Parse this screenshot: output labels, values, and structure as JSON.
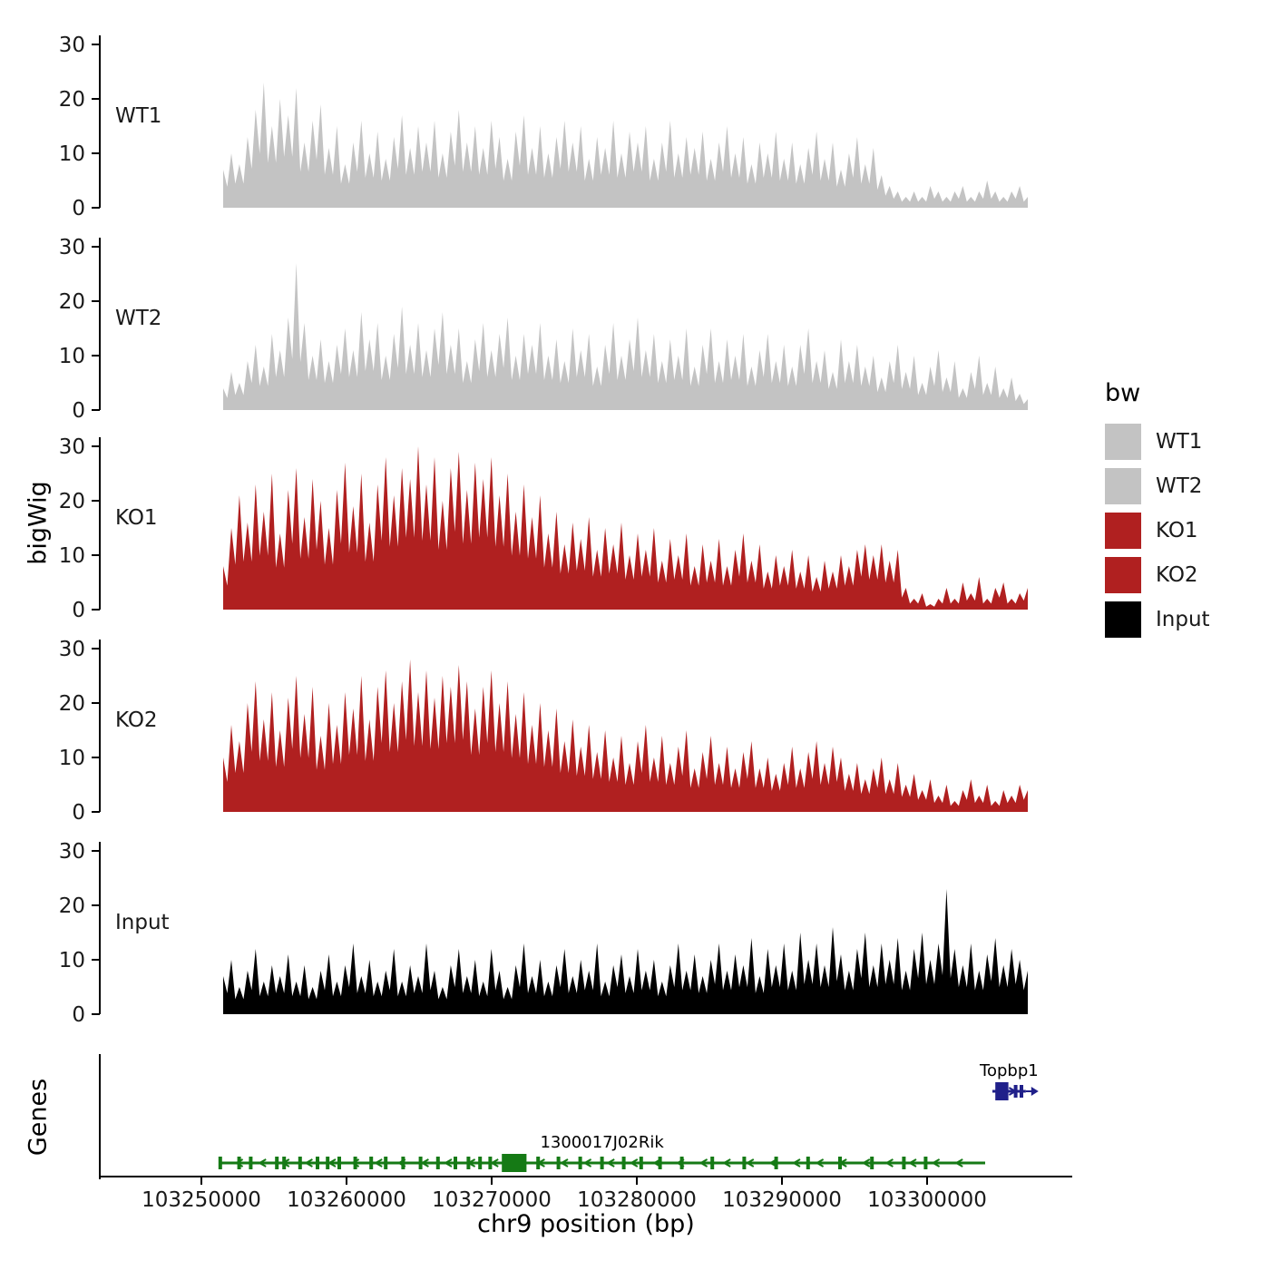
{
  "axis": {
    "y_title": "bigWig",
    "genes_title": "Genes",
    "x_title": "chr9 position (bp)",
    "y_ticks": [
      30,
      20,
      10,
      0
    ]
  },
  "legend": {
    "title": "bw",
    "items": [
      {
        "label": "WT1",
        "color": "#c3c3c3"
      },
      {
        "label": "WT2",
        "color": "#c3c3c3"
      },
      {
        "label": "KO1",
        "color": "#b02020"
      },
      {
        "label": "KO2",
        "color": "#b02020"
      },
      {
        "label": "Input",
        "color": "#000000"
      }
    ]
  },
  "chart_data": {
    "type": "area",
    "title": "",
    "xlabel": "chr9 position (bp)",
    "ylabel": "bigWig",
    "x_axis": {
      "chrom": "chr9",
      "range_bp": [
        103243000,
        103310000
      ],
      "ticks_bp": [
        103250000,
        103260000,
        103270000,
        103280000,
        103290000,
        103300000
      ],
      "tick_labels": [
        "103250000",
        "103260000",
        "103270000",
        "103280000",
        "103290000",
        "103300000"
      ]
    },
    "y_axis": {
      "ticks": [
        0,
        10,
        20,
        30
      ],
      "ylim": [
        0,
        32
      ],
      "grid": false
    },
    "legend_position": "right",
    "signal_start_bp": 103251500,
    "signal_step_bp": 560,
    "tracks": [
      {
        "name": "WT1",
        "color": "#c3c3c3",
        "values": [
          7,
          10,
          8,
          13,
          18,
          23,
          15,
          20,
          17,
          22,
          12,
          16,
          19,
          11,
          15,
          8,
          12,
          16,
          10,
          14,
          9,
          13,
          17,
          11,
          15,
          12,
          16,
          10,
          14,
          18,
          12,
          15,
          11,
          16,
          13,
          9,
          14,
          17,
          11,
          15,
          10,
          13,
          16,
          12,
          15,
          9,
          13,
          11,
          16,
          10,
          14,
          12,
          15,
          9,
          12,
          16,
          10,
          13,
          11,
          14,
          9,
          12,
          15,
          10,
          13,
          8,
          12,
          10,
          14,
          9,
          12,
          8,
          11,
          14,
          9,
          12,
          7,
          10,
          13,
          8,
          11,
          6,
          4,
          3,
          2,
          3,
          2,
          4,
          3,
          2,
          3,
          4,
          2,
          3,
          5,
          3,
          2,
          3,
          4,
          2
        ]
      },
      {
        "name": "WT2",
        "color": "#c3c3c3",
        "values": [
          4,
          7,
          5,
          9,
          12,
          8,
          14,
          11,
          17,
          27,
          16,
          10,
          13,
          9,
          12,
          15,
          11,
          18,
          13,
          16,
          10,
          14,
          19,
          12,
          16,
          11,
          15,
          18,
          12,
          15,
          9,
          13,
          16,
          11,
          14,
          17,
          10,
          14,
          12,
          16,
          10,
          13,
          9,
          15,
          11,
          14,
          8,
          12,
          16,
          10,
          13,
          17,
          11,
          14,
          9,
          13,
          10,
          15,
          8,
          12,
          15,
          9,
          13,
          10,
          14,
          8,
          11,
          14,
          9,
          12,
          8,
          12,
          15,
          9,
          11,
          7,
          13,
          9,
          12,
          8,
          10,
          6,
          9,
          12,
          7,
          10,
          5,
          8,
          11,
          6,
          9,
          4,
          7,
          10,
          5,
          8,
          4,
          6,
          3,
          2
        ]
      },
      {
        "name": "KO1",
        "color": "#b02020",
        "values": [
          8,
          15,
          21,
          16,
          23,
          18,
          25,
          14,
          22,
          26,
          17,
          24,
          20,
          15,
          22,
          27,
          19,
          25,
          16,
          23,
          28,
          21,
          26,
          24,
          30,
          23,
          28,
          20,
          26,
          29,
          22,
          27,
          24,
          28,
          21,
          25,
          18,
          23,
          17,
          21,
          14,
          18,
          12,
          16,
          13,
          17,
          11,
          15,
          12,
          16,
          10,
          14,
          11,
          15,
          9,
          13,
          10,
          14,
          8,
          12,
          9,
          13,
          8,
          11,
          14,
          9,
          12,
          7,
          10,
          8,
          11,
          7,
          10,
          6,
          9,
          7,
          10,
          8,
          11,
          12,
          10,
          12,
          9,
          11,
          4,
          2,
          3,
          1,
          2,
          4,
          2,
          5,
          3,
          6,
          2,
          4,
          5,
          2,
          3,
          4
        ]
      },
      {
        "name": "KO2",
        "color": "#b02020",
        "values": [
          10,
          16,
          13,
          20,
          24,
          17,
          22,
          15,
          21,
          25,
          18,
          23,
          14,
          20,
          16,
          22,
          19,
          25,
          17,
          23,
          26,
          20,
          24,
          28,
          22,
          26,
          21,
          25,
          23,
          27,
          24,
          19,
          23,
          26,
          20,
          24,
          18,
          22,
          16,
          20,
          15,
          19,
          13,
          17,
          12,
          16,
          11,
          15,
          10,
          14,
          9,
          13,
          16,
          10,
          14,
          9,
          12,
          15,
          8,
          11,
          14,
          9,
          12,
          8,
          11,
          13,
          8,
          10,
          7,
          9,
          12,
          8,
          11,
          13,
          9,
          12,
          10,
          7,
          9,
          6,
          8,
          10,
          6,
          9,
          5,
          7,
          4,
          6,
          3,
          5,
          2,
          4,
          6,
          3,
          5,
          2,
          4,
          3,
          5,
          4
        ]
      },
      {
        "name": "Input",
        "color": "#000000",
        "values": [
          7,
          10,
          5,
          8,
          12,
          6,
          9,
          7,
          11,
          6,
          9,
          5,
          8,
          11,
          6,
          9,
          13,
          7,
          10,
          6,
          8,
          12,
          6,
          9,
          7,
          13,
          8,
          5,
          9,
          12,
          7,
          10,
          6,
          12,
          8,
          5,
          9,
          13,
          7,
          10,
          6,
          9,
          12,
          7,
          10,
          8,
          13,
          6,
          9,
          11,
          7,
          12,
          8,
          10,
          6,
          9,
          13,
          8,
          11,
          7,
          10,
          13,
          8,
          11,
          9,
          14,
          7,
          12,
          9,
          13,
          8,
          15,
          10,
          13,
          9,
          16,
          11,
          8,
          12,
          15,
          9,
          13,
          10,
          14,
          8,
          12,
          15,
          10,
          13,
          23,
          12,
          9,
          13,
          8,
          11,
          14,
          9,
          12,
          10,
          8
        ]
      }
    ],
    "genes": [
      {
        "name": "Topbp1",
        "start": 103304500,
        "end": 103306800,
        "strand": "+",
        "color": "#20208a",
        "row": 0,
        "big_exon": {
          "start": 103304700,
          "end": 103305600
        },
        "exons": [
          103306100,
          103306500
        ]
      },
      {
        "name": "1300017J02Rik",
        "start": 103251200,
        "end": 103304000,
        "strand": "-",
        "color": "#157a15",
        "row": 1,
        "big_exon": {
          "start": 103270700,
          "end": 103272400
        },
        "exons": [
          103251300,
          103252600,
          103253400,
          103255200,
          103255700,
          103256800,
          103258000,
          103258700,
          103259500,
          103260600,
          103261700,
          103262700,
          103263900,
          103265100,
          103266300,
          103267500,
          103268400,
          103269200,
          103269900,
          103273200,
          103274600,
          103276100,
          103277600,
          103279100,
          103280300,
          103281600,
          103283100,
          103285200,
          103287400,
          103289600,
          103291800,
          103294000,
          103296200,
          103298400,
          103299900
        ]
      }
    ]
  }
}
